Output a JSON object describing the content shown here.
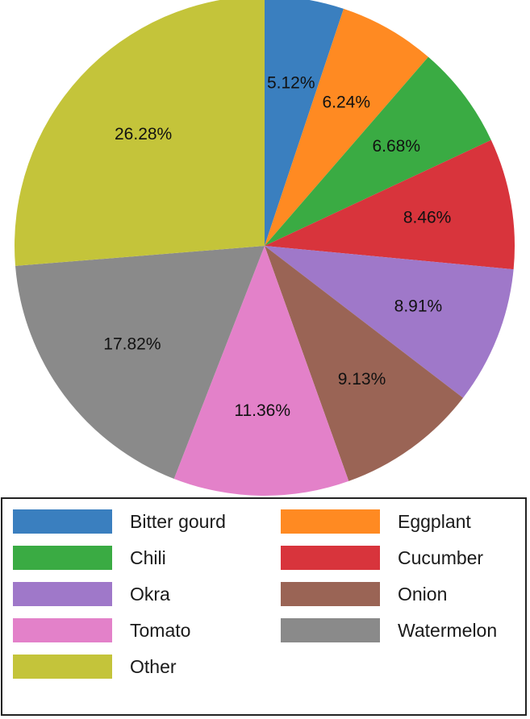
{
  "chart_data": {
    "type": "pie",
    "title": "",
    "start_angle_deg": 90,
    "direction": "clockwise",
    "legend_position": "bottom",
    "slices": [
      {
        "name": "Bitter gourd",
        "value": 5.12,
        "label": "5.12%",
        "color": "#3a7fbf"
      },
      {
        "name": "Eggplant",
        "value": 6.24,
        "label": "6.24%",
        "color": "#ff8a22"
      },
      {
        "name": "Chili",
        "value": 6.68,
        "label": "6.68%",
        "color": "#3aab43"
      },
      {
        "name": "Cucumber",
        "value": 8.46,
        "label": "8.46%",
        "color": "#d8343c"
      },
      {
        "name": "Okra",
        "value": 8.91,
        "label": "8.91%",
        "color": "#9f78c9"
      },
      {
        "name": "Onion",
        "value": 9.13,
        "label": "9.13%",
        "color": "#9a6455"
      },
      {
        "name": "Tomato",
        "value": 11.36,
        "label": "11.36%",
        "color": "#e381c9"
      },
      {
        "name": "Watermelon",
        "value": 17.82,
        "label": "17.82%",
        "color": "#8a8a8a"
      },
      {
        "name": "Other",
        "value": 26.28,
        "label": "26.28%",
        "color": "#c4c43a"
      }
    ]
  }
}
